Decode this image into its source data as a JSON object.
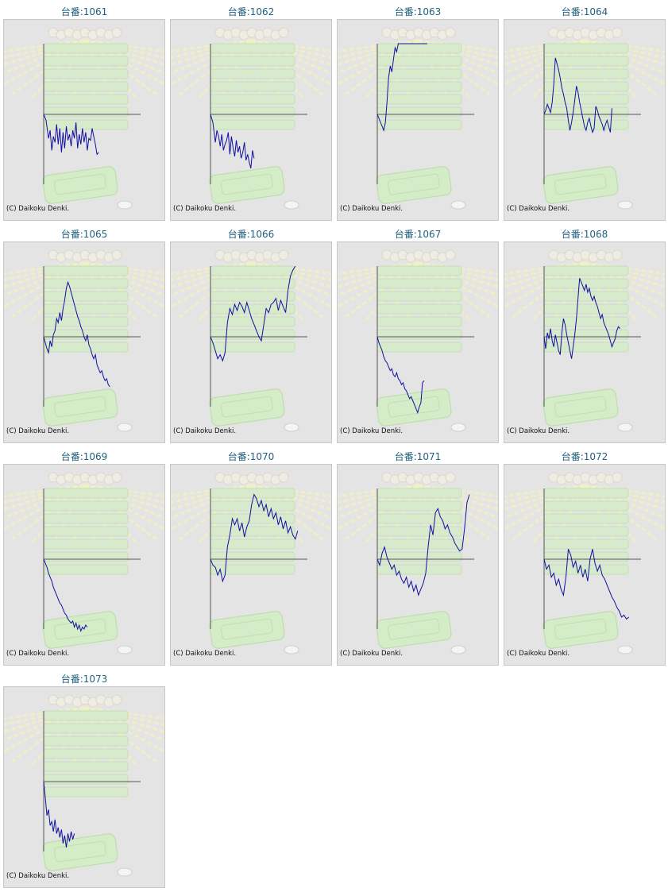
{
  "title_prefix": "台番:",
  "copyright": "(C) Daikoku Denki.",
  "line_color": "#1010a0",
  "axis_color": "#555555",
  "chart_data": [
    {
      "type": "line",
      "title": "台番:1061",
      "x": [
        0,
        3,
        6,
        8,
        10,
        12,
        14,
        16,
        18,
        20,
        22,
        24,
        26,
        28,
        30,
        32,
        34,
        36,
        38,
        40,
        42,
        44,
        46,
        48,
        50,
        52,
        54,
        56,
        58,
        60,
        62,
        64,
        66,
        68
      ],
      "y": [
        0,
        -300,
        -1200,
        -800,
        -1800,
        -1100,
        -1400,
        -500,
        -1500,
        -700,
        -1900,
        -900,
        -1700,
        -600,
        -1300,
        -1000,
        -1600,
        -800,
        -1200,
        -400,
        -1700,
        -1000,
        -1500,
        -700,
        -1400,
        -900,
        -1800,
        -1200,
        -1300,
        -700,
        -1100,
        -1500,
        -2000,
        -1900
      ],
      "ylim": [
        -3500,
        3500
      ]
    },
    {
      "type": "line",
      "title": "台番:1062",
      "x": [
        0,
        3,
        6,
        8,
        10,
        12,
        14,
        16,
        18,
        20,
        22,
        24,
        26,
        28,
        30,
        32,
        34,
        36,
        38,
        40,
        42,
        44,
        46,
        48,
        50,
        52,
        54
      ],
      "y": [
        0,
        -400,
        -1400,
        -800,
        -1100,
        -1600,
        -1000,
        -1800,
        -1500,
        -1300,
        -900,
        -2000,
        -1100,
        -1700,
        -2100,
        -1300,
        -1900,
        -1600,
        -2200,
        -1900,
        -1400,
        -2300,
        -2000,
        -2400,
        -2700,
        -1800,
        -2200
      ],
      "ylim": [
        -3500,
        3500
      ]
    },
    {
      "type": "line",
      "title": "台番:1063",
      "x": [
        0,
        3,
        6,
        8,
        10,
        12,
        14,
        16,
        18,
        20,
        22,
        24,
        26,
        28,
        30,
        32,
        34,
        36,
        38,
        40,
        42,
        44,
        46,
        48,
        50,
        52,
        54,
        56,
        58,
        60,
        62
      ],
      "y": [
        0,
        -300,
        -600,
        -800,
        -400,
        600,
        1800,
        2400,
        2100,
        2700,
        3300,
        3100,
        3500,
        3500,
        3500,
        3500,
        3500,
        3500,
        3500,
        3500,
        3500,
        3500,
        3500,
        3500,
        3500,
        3500,
        3500,
        3500,
        3500,
        3500,
        3500
      ],
      "ylim": [
        -3500,
        3500
      ]
    },
    {
      "type": "line",
      "title": "台番:1064",
      "x": [
        0,
        2,
        4,
        6,
        8,
        10,
        12,
        14,
        16,
        18,
        20,
        22,
        24,
        26,
        28,
        30,
        32,
        34,
        36,
        38,
        40,
        42,
        44,
        46,
        48,
        50,
        52,
        54,
        56,
        58,
        60,
        62,
        64,
        66,
        68,
        70,
        72,
        74,
        76,
        78,
        80,
        82,
        84
      ],
      "y": [
        0,
        200,
        500,
        300,
        100,
        600,
        1500,
        2800,
        2500,
        2200,
        1800,
        1300,
        1000,
        600,
        300,
        -300,
        -800,
        -400,
        100,
        700,
        1400,
        1100,
        600,
        200,
        -200,
        -600,
        -800,
        -400,
        -200,
        -600,
        -900,
        -700,
        400,
        200,
        -100,
        -300,
        -500,
        -800,
        -500,
        -300,
        -600,
        -900,
        300
      ],
      "ylim": [
        -3500,
        3500
      ]
    },
    {
      "type": "line",
      "title": "台番:1065",
      "x": [
        0,
        2,
        4,
        6,
        8,
        10,
        12,
        14,
        16,
        18,
        20,
        22,
        24,
        26,
        28,
        30,
        32,
        34,
        36,
        38,
        40,
        42,
        44,
        46,
        48,
        50,
        52,
        54,
        56,
        58,
        60,
        62,
        64,
        66,
        68,
        70,
        72,
        74,
        76,
        78,
        80,
        82
      ],
      "y": [
        0,
        -300,
        -600,
        -800,
        -200,
        -500,
        100,
        300,
        900,
        700,
        1200,
        800,
        1400,
        1800,
        2400,
        2700,
        2500,
        2200,
        1900,
        1600,
        1300,
        1000,
        800,
        500,
        300,
        0,
        -200,
        100,
        -400,
        -600,
        -900,
        -1100,
        -900,
        -1400,
        -1600,
        -1800,
        -1700,
        -2000,
        -2200,
        -2100,
        -2400,
        -2500
      ],
      "ylim": [
        -3500,
        3500
      ]
    },
    {
      "type": "line",
      "title": "台番:1066",
      "x": [
        0,
        3,
        6,
        9,
        12,
        15,
        18,
        21,
        24,
        27,
        30,
        33,
        36,
        39,
        42,
        45,
        48,
        51,
        54,
        57,
        60,
        63,
        66,
        69,
        72,
        75,
        78,
        81,
        84,
        87,
        90,
        93,
        96,
        99,
        102,
        105
      ],
      "y": [
        0,
        -300,
        -700,
        -1100,
        -900,
        -1200,
        -800,
        700,
        1400,
        1100,
        1600,
        1300,
        1700,
        1500,
        1200,
        1700,
        1300,
        900,
        600,
        300,
        0,
        -200,
        600,
        1400,
        1200,
        1600,
        1700,
        1900,
        1300,
        1800,
        1500,
        1200,
        2300,
        3000,
        3300,
        3500
      ],
      "ylim": [
        -3500,
        3500
      ]
    },
    {
      "type": "line",
      "title": "台番:1067",
      "x": [
        0,
        2,
        4,
        6,
        8,
        10,
        12,
        14,
        16,
        18,
        20,
        22,
        24,
        26,
        28,
        30,
        32,
        34,
        36,
        38,
        40,
        42,
        44,
        46,
        48,
        50,
        52,
        54,
        56,
        58
      ],
      "y": [
        0,
        -300,
        -500,
        -700,
        -1000,
        -1200,
        -1300,
        -1500,
        -1700,
        -1600,
        -1900,
        -2000,
        -1800,
        -2100,
        -2200,
        -2400,
        -2300,
        -2600,
        -2700,
        -2900,
        -3100,
        -3000,
        -3200,
        -3400,
        -3600,
        -3800,
        -3500,
        -3300,
        -2300,
        -2200
      ],
      "ylim": [
        -3500,
        3500
      ]
    },
    {
      "type": "line",
      "title": "台番:1068",
      "x": [
        0,
        2,
        4,
        6,
        8,
        10,
        12,
        14,
        16,
        18,
        20,
        22,
        24,
        26,
        28,
        30,
        32,
        34,
        36,
        38,
        40,
        42,
        44,
        46,
        48,
        50,
        52,
        54,
        56,
        58,
        60,
        62,
        64,
        66,
        68,
        70,
        72,
        74,
        76,
        78,
        80,
        82,
        84,
        86,
        88,
        90,
        92,
        94
      ],
      "y": [
        0,
        -600,
        200,
        -100,
        400,
        -200,
        -500,
        100,
        -300,
        -700,
        -900,
        200,
        900,
        600,
        100,
        -300,
        -700,
        -1100,
        -500,
        100,
        900,
        1900,
        2900,
        2700,
        2500,
        2300,
        2600,
        2200,
        2400,
        2000,
        1800,
        2000,
        1700,
        1500,
        1200,
        900,
        1100,
        700,
        500,
        300,
        100,
        -200,
        -500,
        -300,
        -100,
        300,
        500,
        400
      ],
      "ylim": [
        -3500,
        3500
      ]
    },
    {
      "type": "line",
      "title": "台番:1069",
      "x": [
        0,
        2,
        4,
        6,
        8,
        10,
        12,
        14,
        16,
        18,
        20,
        22,
        24,
        26,
        28,
        30,
        32,
        34,
        36,
        38,
        40,
        42,
        44,
        46,
        48,
        50,
        52,
        54
      ],
      "y": [
        0,
        -200,
        -400,
        -700,
        -900,
        -1100,
        -1400,
        -1600,
        -1800,
        -2000,
        -2200,
        -2300,
        -2500,
        -2700,
        -2800,
        -3000,
        -3100,
        -3200,
        -3100,
        -3400,
        -3200,
        -3500,
        -3300,
        -3600,
        -3400,
        -3500,
        -3300,
        -3400
      ],
      "ylim": [
        -3500,
        3500
      ]
    },
    {
      "type": "line",
      "title": "台番:1070",
      "x": [
        0,
        3,
        6,
        9,
        12,
        15,
        18,
        21,
        24,
        27,
        30,
        33,
        36,
        39,
        42,
        45,
        48,
        51,
        54,
        57,
        60,
        63,
        66,
        69,
        72,
        75,
        78,
        81,
        84,
        87,
        90,
        93,
        96,
        99,
        102,
        105,
        108
      ],
      "y": [
        0,
        -300,
        -400,
        -800,
        -500,
        -1100,
        -800,
        600,
        1200,
        2000,
        1700,
        2000,
        1400,
        1800,
        1100,
        1600,
        1900,
        2700,
        3200,
        3000,
        2600,
        2900,
        2400,
        2700,
        2100,
        2500,
        2000,
        2300,
        1700,
        2100,
        1500,
        1900,
        1300,
        1600,
        1200,
        1000,
        1400
      ],
      "ylim": [
        -3500,
        3500
      ]
    },
    {
      "type": "line",
      "title": "台番:1071",
      "x": [
        0,
        3,
        6,
        9,
        12,
        15,
        18,
        21,
        24,
        27,
        30,
        33,
        36,
        39,
        42,
        45,
        48,
        51,
        54,
        57,
        60,
        63,
        66,
        69,
        72,
        75,
        78,
        81,
        84,
        87,
        90,
        93,
        96,
        99,
        102,
        105,
        108,
        111,
        114
      ],
      "y": [
        0,
        -300,
        300,
        600,
        100,
        -200,
        -500,
        -300,
        -800,
        -600,
        -1000,
        -1200,
        -900,
        -1400,
        -1100,
        -1600,
        -1300,
        -1800,
        -1500,
        -1200,
        -700,
        600,
        1700,
        1200,
        2300,
        2500,
        2100,
        1900,
        1500,
        1700,
        1300,
        1100,
        800,
        600,
        400,
        500,
        1500,
        2800,
        3200
      ],
      "ylim": [
        -3500,
        3500
      ]
    },
    {
      "type": "line",
      "title": "台番:1072",
      "x": [
        0,
        3,
        6,
        9,
        12,
        15,
        18,
        21,
        24,
        27,
        30,
        33,
        36,
        39,
        42,
        45,
        48,
        51,
        54,
        57,
        60,
        63,
        66,
        69,
        72,
        75,
        78,
        81,
        84,
        87,
        90,
        93,
        96,
        99,
        102,
        105
      ],
      "y": [
        0,
        -500,
        -300,
        -900,
        -700,
        -1300,
        -1000,
        -1500,
        -1800,
        -900,
        500,
        200,
        -400,
        -100,
        -700,
        -300,
        -900,
        -500,
        -1100,
        0,
        500,
        -200,
        -600,
        -300,
        -800,
        -1000,
        -1300,
        -1600,
        -1900,
        -2100,
        -2400,
        -2600,
        -2900,
        -2800,
        -3000,
        -2900
      ],
      "ylim": [
        -3500,
        3500
      ]
    },
    {
      "type": "line",
      "title": "台番:1073",
      "x": [
        0,
        2,
        4,
        6,
        8,
        10,
        12,
        14,
        16,
        18,
        20,
        22,
        24,
        26,
        28,
        30,
        32,
        34,
        36,
        38
      ],
      "y": [
        0,
        -800,
        -1700,
        -1400,
        -2200,
        -2000,
        -2500,
        -1900,
        -2600,
        -2300,
        -2800,
        -2400,
        -3100,
        -2700,
        -3300,
        -2600,
        -3000,
        -2500,
        -2900,
        -2600
      ],
      "ylim": [
        -3500,
        3500
      ]
    }
  ]
}
